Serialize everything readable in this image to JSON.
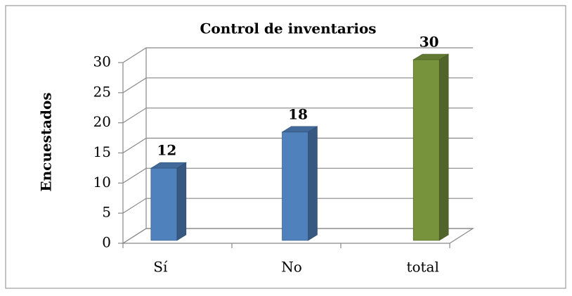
{
  "chart_data": {
    "type": "bar3d",
    "title": "Control de inventarios",
    "y_label": "Encuestados",
    "categories": [
      "Sí",
      "No",
      "total"
    ],
    "values": [
      12,
      18,
      30
    ],
    "colors": [
      "#4f81bd",
      "#4f81bd",
      "#77933c"
    ],
    "ylim": [
      0,
      30
    ],
    "yticks": [
      0,
      5,
      10,
      15,
      20,
      25,
      30
    ],
    "grid": true
  }
}
